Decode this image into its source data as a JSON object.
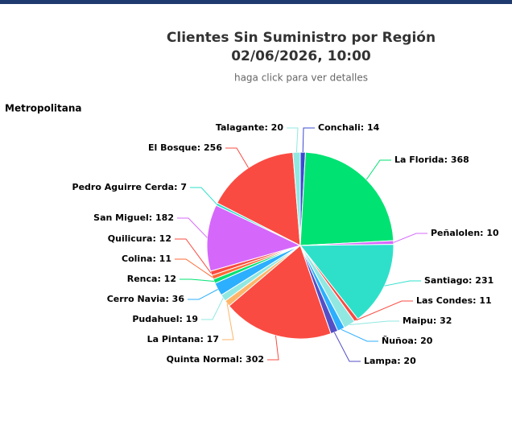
{
  "chart_data": {
    "type": "pie",
    "title": "Clientes Sin Suministro por Región",
    "date": "02/06/2026, 10:00",
    "subtitle": "haga click para ver detalles",
    "region": "Metropolitana",
    "values": [
      14,
      368,
      10,
      231,
      11,
      32,
      20,
      20,
      302,
      17,
      19,
      36,
      12,
      11,
      12,
      182,
      7,
      256,
      20
    ],
    "value_labels": [
      "Conchali: 14",
      "La Florida: 368",
      "Peñalolen: 10",
      "Santiago: 231",
      "Las Condes: 11",
      "Maipu: 32",
      "Ñuñoa: 20",
      "Lampa: 20",
      "Quinta Normal: 302",
      "La Pintana: 17",
      "Pudahuel: 19",
      "Cerro Navia: 36",
      "Renca: 12",
      "Colina: 11",
      "Quilicura: 12",
      "San Miguel: 182",
      "Pedro Aguirre Cerda: 7",
      "El Bosque: 256",
      "Talagante: 20"
    ],
    "colors": [
      "#3b4bd0",
      "#00e272",
      "#d568fb",
      "#2ee0ca",
      "#fa4b42",
      "#91e8e1",
      "#2caffe",
      "#544fc5",
      "#fa4b42",
      "#feb56a",
      "#91e8e1",
      "#2caffe",
      "#00e272",
      "#fe6a35",
      "#fa4b42",
      "#d568fb",
      "#2ee0ca",
      "#fa4b42",
      "#91e8e1"
    ]
  }
}
